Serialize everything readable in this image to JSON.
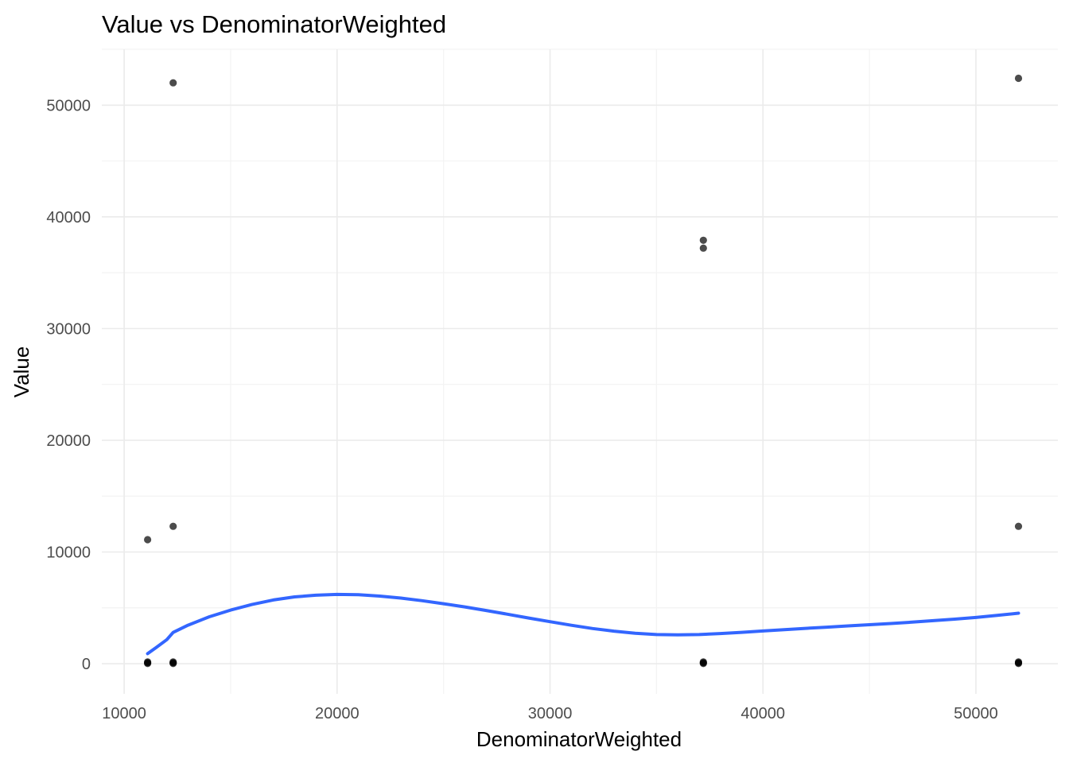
{
  "chart_data": {
    "type": "scatter",
    "title": "Value vs DenominatorWeighted",
    "xlabel": "DenominatorWeighted",
    "ylabel": "Value",
    "xlim": [
      8950,
      53850
    ],
    "ylim": [
      -2700,
      55000
    ],
    "x_ticks": [
      10000,
      20000,
      30000,
      40000,
      50000
    ],
    "y_ticks": [
      0,
      10000,
      20000,
      30000,
      40000,
      50000
    ],
    "x_tick_labels": [
      "10000",
      "20000",
      "30000",
      "40000",
      "50000"
    ],
    "y_tick_labels": [
      "0",
      "10000",
      "20000",
      "30000",
      "40000",
      "50000"
    ],
    "grid": true,
    "legend": "none",
    "point_color": "#000000",
    "point_opacity": 0.7,
    "smooth_color": "#3366ff",
    "points": [
      {
        "x": 11100,
        "y": 11100
      },
      {
        "x": 11100,
        "y": 80
      },
      {
        "x": 11100,
        "y": 150
      },
      {
        "x": 11100,
        "y": 20
      },
      {
        "x": 12300,
        "y": 52000
      },
      {
        "x": 12300,
        "y": 12300
      },
      {
        "x": 12300,
        "y": 80
      },
      {
        "x": 12300,
        "y": 150
      },
      {
        "x": 12300,
        "y": 20
      },
      {
        "x": 37200,
        "y": 37900
      },
      {
        "x": 37200,
        "y": 37200
      },
      {
        "x": 37200,
        "y": 80
      },
      {
        "x": 37200,
        "y": 150
      },
      {
        "x": 37200,
        "y": 20
      },
      {
        "x": 52000,
        "y": 52400
      },
      {
        "x": 52000,
        "y": 12300
      },
      {
        "x": 52000,
        "y": 80
      },
      {
        "x": 52000,
        "y": 150
      },
      {
        "x": 52000,
        "y": 20
      }
    ],
    "smooth_line": {
      "x": [
        11100,
        11500,
        12000,
        12300,
        13000,
        14000,
        15000,
        16000,
        17000,
        18000,
        19000,
        20000,
        21000,
        22000,
        23000,
        24000,
        25000,
        26000,
        27000,
        28000,
        29000,
        30000,
        31000,
        32000,
        33000,
        34000,
        35000,
        36000,
        37000,
        38000,
        39000,
        40000,
        41000,
        42000,
        43000,
        44000,
        45000,
        46000,
        47000,
        48000,
        49000,
        50000,
        51000,
        52000
      ],
      "y": [
        900,
        1450,
        2150,
        2800,
        3450,
        4200,
        4800,
        5300,
        5700,
        5980,
        6130,
        6200,
        6170,
        6050,
        5870,
        5640,
        5370,
        5080,
        4760,
        4430,
        4090,
        3760,
        3440,
        3150,
        2910,
        2720,
        2610,
        2580,
        2610,
        2700,
        2810,
        2930,
        3040,
        3160,
        3270,
        3380,
        3490,
        3600,
        3720,
        3850,
        3990,
        4140,
        4320,
        4520
      ]
    }
  }
}
